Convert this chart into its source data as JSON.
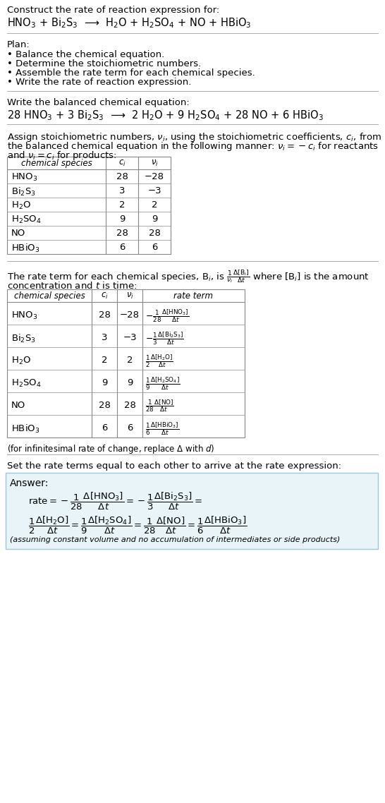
{
  "title_line1": "Construct the rate of reaction expression for:",
  "reaction_unbalanced": "HNO$_3$ + Bi$_2$S$_3$  ⟶  H$_2$O + H$_2$SO$_4$ + NO + HBiO$_3$",
  "plan_header": "Plan:",
  "plan_items": [
    "• Balance the chemical equation.",
    "• Determine the stoichiometric numbers.",
    "• Assemble the rate term for each chemical species.",
    "• Write the rate of reaction expression."
  ],
  "balanced_header": "Write the balanced chemical equation:",
  "balanced_eq": "28 HNO$_3$ + 3 Bi$_2$S$_3$  ⟶  2 H$_2$O + 9 H$_2$SO$_4$ + 28 NO + 6 HBiO$_3$",
  "assign_text1": "Assign stoichiometric numbers, $\\nu_i$, using the stoichiometric coefficients, $c_i$, from",
  "assign_text2": "the balanced chemical equation in the following manner: $\\nu_i = -c_i$ for reactants",
  "assign_text3": "and $\\nu_i = c_i$ for products:",
  "table1_headers": [
    "chemical species",
    "$c_i$",
    "$\\nu_i$"
  ],
  "table1_rows": [
    [
      "HNO$_3$",
      "28",
      "−28"
    ],
    [
      "Bi$_2$S$_3$",
      "3",
      "−3"
    ],
    [
      "H$_2$O",
      "2",
      "2"
    ],
    [
      "H$_2$SO$_4$",
      "9",
      "9"
    ],
    [
      "NO",
      "28",
      "28"
    ],
    [
      "HBiO$_3$",
      "6",
      "6"
    ]
  ],
  "rate_text1": "The rate term for each chemical species, B$_i$, is $\\frac{1}{\\nu_i}\\frac{\\Delta[\\mathrm{B}_i]}{\\Delta t}$ where [B$_i$] is the amount",
  "rate_text2": "concentration and $t$ is time:",
  "table2_headers": [
    "chemical species",
    "$c_i$",
    "$\\nu_i$",
    "rate term"
  ],
  "table2_rows": [
    [
      "HNO$_3$",
      "28",
      "−28",
      "$-\\frac{1}{28}\\frac{\\Delta[\\mathrm{HNO_3}]}{\\Delta t}$"
    ],
    [
      "Bi$_2$S$_3$",
      "3",
      "−3",
      "$-\\frac{1}{3}\\frac{\\Delta[\\mathrm{Bi_2S_3}]}{\\Delta t}$"
    ],
    [
      "H$_2$O",
      "2",
      "2",
      "$\\frac{1}{2}\\frac{\\Delta[\\mathrm{H_2O}]}{\\Delta t}$"
    ],
    [
      "H$_2$SO$_4$",
      "9",
      "9",
      "$\\frac{1}{9}\\frac{\\Delta[\\mathrm{H_2SO_4}]}{\\Delta t}$"
    ],
    [
      "NO",
      "28",
      "28",
      "$\\frac{1}{28}\\frac{\\Delta[\\mathrm{NO}]}{\\Delta t}$"
    ],
    [
      "HBiO$_3$",
      "6",
      "6",
      "$\\frac{1}{6}\\frac{\\Delta[\\mathrm{HBiO_3}]}{\\Delta t}$"
    ]
  ],
  "infinitesimal_note": "(for infinitesimal rate of change, replace Δ with $d$)",
  "set_rate_text": "Set the rate terms equal to each other to arrive at the rate expression:",
  "answer_label": "Answer:",
  "answer_box_color": "#e8f4f8",
  "answer_box_border": "#a0c8d8",
  "answer_note": "(assuming constant volume and no accumulation of intermediates or side products)",
  "bg_color": "#ffffff",
  "text_color": "#000000",
  "font_size": 9.5,
  "small_font": 8.5,
  "line_color": "#aaaaaa"
}
